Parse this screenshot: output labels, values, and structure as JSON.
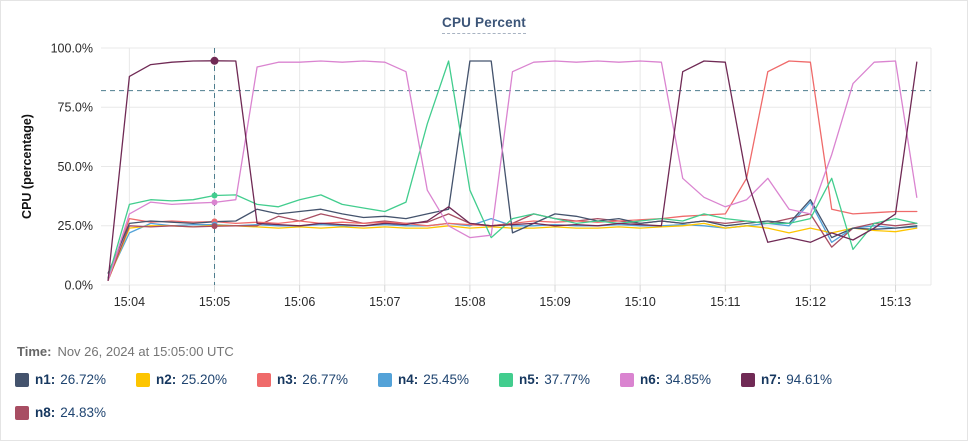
{
  "card": {
    "title": "CPU Percent"
  },
  "time_row": {
    "label": "Time:",
    "value": "Nov 26, 2024 at 15:05:00 UTC"
  },
  "style": {
    "grid_color": "#e8e8e8",
    "tick_color": "#d6d6d6",
    "axis_text_color": "#2b2b2b",
    "threshold_color": "#4d7d8e",
    "crosshair_color": "#4d7d8e"
  },
  "chart_data": {
    "type": "line",
    "title": "CPU Percent",
    "xlabel": "",
    "ylabel": "CPU (percentage)",
    "ylim": [
      0,
      100
    ],
    "grid": true,
    "legend_position": "bottom",
    "y_tick_values": [
      0,
      25,
      50,
      75,
      100
    ],
    "y_tick_labels": [
      "0.0%",
      "25.0%",
      "50.0%",
      "75.0%",
      "100.0%"
    ],
    "x_tick_labels": [
      "15:04",
      "15:05",
      "15:06",
      "15:07",
      "15:08",
      "15:09",
      "15:10",
      "15:11",
      "15:12",
      "15:13"
    ],
    "x_domain": [
      "15:03:40",
      "15:13:25"
    ],
    "sample_start": "15:03:45",
    "sample_step_seconds": 15,
    "threshold_value": 82,
    "crosshair_time": "15:05:00",
    "series": [
      {
        "name": "n1",
        "color": "#44536d",
        "crosshair_value": "26.72%",
        "values": [
          5,
          26,
          27,
          26.5,
          26,
          26.72,
          27,
          32,
          30,
          31,
          32,
          30,
          28.5,
          29,
          28,
          30,
          32,
          94.5,
          94.5,
          22,
          26,
          30,
          29,
          27,
          28,
          26,
          27,
          26,
          27,
          25,
          26,
          27,
          26,
          36,
          20,
          24,
          23.5,
          24,
          25
        ]
      },
      {
        "name": "n2",
        "color": "#fdc500",
        "crosshair_value": "25.20%",
        "values": [
          2,
          24,
          25,
          25,
          24.5,
          25.2,
          25,
          24.5,
          24,
          24.5,
          24,
          24.5,
          24,
          24.5,
          24,
          24,
          25,
          24,
          24.5,
          24,
          24,
          24.5,
          24,
          24,
          24.5,
          24,
          24.5,
          25,
          26,
          24,
          25,
          24,
          22,
          24,
          22,
          24,
          23,
          22.5,
          24
        ]
      },
      {
        "name": "n3",
        "color": "#ef6a6a",
        "crosshair_value": "26.77%",
        "values": [
          2,
          28,
          26.5,
          27,
          26.5,
          26.77,
          26,
          26.5,
          26,
          27,
          26,
          26.5,
          26,
          26.5,
          26,
          25,
          26,
          25.5,
          25,
          26,
          27,
          26.5,
          27,
          26.5,
          27,
          27.5,
          28,
          29,
          29.5,
          30,
          45,
          90,
          94.5,
          94,
          32,
          30,
          30.5,
          31,
          31
        ]
      },
      {
        "name": "n4",
        "color": "#53a2d8",
        "crosshair_value": "25.45%",
        "values": [
          3,
          22,
          26,
          25,
          25.5,
          25.45,
          25,
          25.5,
          25,
          25,
          25.5,
          25,
          25,
          25.5,
          25,
          25,
          26,
          25,
          28,
          25,
          25,
          25.5,
          25,
          25,
          25.5,
          25,
          25,
          25.5,
          25,
          24,
          25,
          26,
          25,
          35,
          18,
          24,
          25,
          24,
          24.5
        ]
      },
      {
        "name": "n5",
        "color": "#42cd8e",
        "crosshair_value": "37.77%",
        "values": [
          3,
          34,
          36,
          35.5,
          36,
          37.77,
          38,
          34,
          33,
          36,
          38,
          34,
          32.5,
          31,
          35,
          68,
          94.5,
          40,
          20,
          28,
          30,
          28,
          26,
          27,
          26,
          27,
          28,
          27,
          30,
          28,
          27,
          26,
          26,
          28,
          45,
          15,
          26,
          28,
          26
        ]
      },
      {
        "name": "n6",
        "color": "#da84d0",
        "crosshair_value": "34.85%",
        "values": [
          2,
          30,
          35,
          34,
          34.5,
          34.85,
          36,
          92,
          94,
          94,
          94.5,
          94,
          94.5,
          94,
          90,
          40,
          25,
          20,
          21,
          90,
          94,
          94.5,
          94,
          94.5,
          94,
          94.5,
          94,
          45,
          37,
          33,
          36,
          45,
          32,
          30,
          55,
          85,
          94,
          94.5,
          37
        ]
      },
      {
        "name": "n7",
        "color": "#702a55",
        "crosshair_value": "94.61%",
        "values": [
          2,
          88,
          93,
          94,
          94.5,
          94.61,
          94.5,
          26,
          25.5,
          25,
          26,
          25.5,
          25,
          26,
          25.5,
          27,
          33,
          26,
          25,
          25.5,
          26,
          25,
          25.5,
          25,
          26,
          25.5,
          25,
          90,
          94.5,
          94,
          45,
          18,
          20,
          18,
          22,
          19,
          24,
          30,
          94
        ]
      },
      {
        "name": "n8",
        "color": "#a84e63",
        "crosshair_value": "24.83%",
        "values": [
          2,
          25,
          24.5,
          25,
          24.5,
          24.83,
          25,
          25,
          29,
          27,
          30,
          28,
          26,
          27,
          26,
          26.5,
          30,
          26,
          25,
          26,
          30,
          28,
          27,
          28,
          27,
          26,
          27,
          26,
          27,
          26,
          27,
          26,
          28,
          30,
          16,
          24,
          26,
          25,
          26
        ]
      }
    ]
  }
}
